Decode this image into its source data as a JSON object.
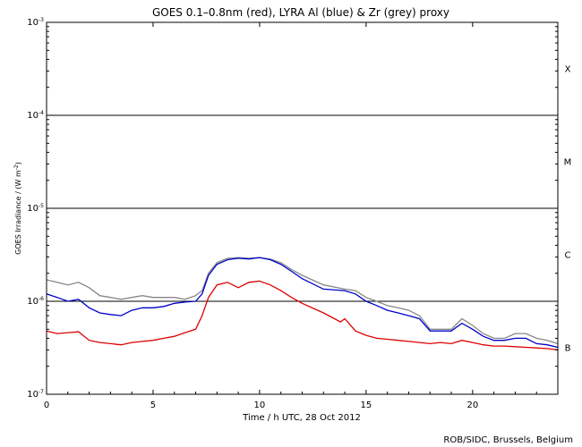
{
  "chart_data": {
    "type": "line",
    "title": "GOES 0.1–0.8nm (red), LYRA Al (blue) & Zr (grey) proxy",
    "xlabel": "Time / h UTC, 28 Oct 2012",
    "ylabel": "GOES Irradiance / (W m",
    "ylabel_sup": "-2",
    "ylabel_close": ")",
    "xlim": [
      0,
      24
    ],
    "ylim": [
      1e-07,
      0.001
    ],
    "yscale": "log",
    "x_ticks": [
      {
        "value": 0,
        "label": "0"
      },
      {
        "value": 5,
        "label": "5"
      },
      {
        "value": 10,
        "label": "10"
      },
      {
        "value": 15,
        "label": "15"
      },
      {
        "value": 20,
        "label": "20"
      }
    ],
    "y_ticks": [
      {
        "value": 1e-07,
        "base": "10",
        "exp": "-7"
      },
      {
        "value": 1e-06,
        "base": "10",
        "exp": "-6"
      },
      {
        "value": 1e-05,
        "base": "10",
        "exp": "-5"
      },
      {
        "value": 0.0001,
        "base": "10",
        "exp": "-4"
      },
      {
        "value": 0.001,
        "base": "10",
        "exp": "-3"
      }
    ],
    "class_lines": [
      1e-06,
      1e-05,
      0.0001
    ],
    "flare_classes": [
      {
        "label": "X",
        "value": 0.00032
      },
      {
        "label": "M",
        "value": 3.2e-05
      },
      {
        "label": "C",
        "value": 3.2e-06
      },
      {
        "label": "B",
        "value": 3.2e-07
      }
    ],
    "series": [
      {
        "color": "#888888",
        "x": [
          0.0,
          0.5,
          1.0,
          1.5,
          2.0,
          2.5,
          3.0,
          3.5,
          4.0,
          4.5,
          5.0,
          5.5,
          6.0,
          6.5,
          7.0,
          7.3,
          7.6,
          8.0,
          8.5,
          9.0,
          9.5,
          10.0,
          10.5,
          11.0,
          11.5,
          12.0,
          13.0,
          14.0,
          14.5,
          15.0,
          15.5,
          16.0,
          16.5,
          17.0,
          17.5,
          18.0,
          18.5,
          19.0,
          19.5,
          20.0,
          20.5,
          21.0,
          21.5,
          22.0,
          22.5,
          23.0,
          23.5,
          24.0
        ],
        "y": [
          1.7e-06,
          1.6e-06,
          1.5e-06,
          1.6e-06,
          1.4e-06,
          1.15e-06,
          1.1e-06,
          1.05e-06,
          1.1e-06,
          1.15e-06,
          1.1e-06,
          1.1e-06,
          1.1e-06,
          1.05e-06,
          1.15e-06,
          1.3e-06,
          2e-06,
          2.6e-06,
          2.9e-06,
          2.95e-06,
          2.9e-06,
          2.95e-06,
          2.85e-06,
          2.6e-06,
          2.2e-06,
          1.9e-06,
          1.5e-06,
          1.35e-06,
          1.3e-06,
          1.1e-06,
          1e-06,
          9e-07,
          8.5e-07,
          8e-07,
          7e-07,
          5e-07,
          5e-07,
          5e-07,
          6.5e-07,
          5.5e-07,
          4.5e-07,
          4e-07,
          4e-07,
          4.5e-07,
          4.5e-07,
          4e-07,
          3.8e-07,
          3.5e-07
        ]
      },
      {
        "color": "#0000cc",
        "x": [
          0.0,
          0.5,
          1.0,
          1.5,
          2.0,
          2.5,
          3.0,
          3.5,
          4.0,
          4.5,
          5.0,
          5.5,
          6.0,
          6.5,
          7.0,
          7.3,
          7.6,
          8.0,
          8.5,
          9.0,
          9.5,
          10.0,
          10.5,
          11.0,
          11.5,
          12.0,
          13.0,
          14.0,
          14.5,
          15.0,
          15.5,
          16.0,
          16.5,
          17.0,
          17.5,
          18.0,
          18.5,
          19.0,
          19.5,
          20.0,
          20.5,
          21.0,
          21.5,
          22.0,
          22.5,
          23.0,
          23.5,
          24.0
        ],
        "y": [
          1.2e-06,
          1.1e-06,
          1e-06,
          1.05e-06,
          8.5e-07,
          7.5e-07,
          7.2e-07,
          7e-07,
          8e-07,
          8.5e-07,
          8.5e-07,
          8.8e-07,
          9.5e-07,
          9.8e-07,
          1e-06,
          1.2e-06,
          1.9e-06,
          2.5e-06,
          2.8e-06,
          2.9e-06,
          2.85e-06,
          2.95e-06,
          2.8e-06,
          2.5e-06,
          2.1e-06,
          1.75e-06,
          1.35e-06,
          1.3e-06,
          1.2e-06,
          1e-06,
          9e-07,
          8e-07,
          7.5e-07,
          7e-07,
          6.5e-07,
          4.8e-07,
          4.8e-07,
          4.8e-07,
          5.8e-07,
          5e-07,
          4.2e-07,
          3.8e-07,
          3.8e-07,
          4e-07,
          4e-07,
          3.5e-07,
          3.4e-07,
          3.2e-07
        ]
      },
      {
        "color": "#dd0000",
        "x": [
          0.0,
          0.5,
          1.0,
          1.5,
          2.0,
          2.5,
          3.0,
          3.5,
          4.0,
          4.5,
          5.0,
          5.5,
          6.0,
          6.5,
          7.0,
          7.3,
          7.6,
          8.0,
          8.5,
          9.0,
          9.5,
          10.0,
          10.5,
          11.0,
          11.5,
          12.0,
          13.0,
          13.8,
          14.0,
          14.5,
          15.0,
          15.5,
          16.0,
          16.5,
          17.0,
          17.5,
          18.0,
          18.5,
          19.0,
          19.5,
          20.0,
          20.5,
          21.0,
          21.5,
          22.0,
          22.5,
          23.0,
          23.5,
          24.0
        ],
        "y": [
          4.8e-07,
          4.5e-07,
          4.6e-07,
          4.7e-07,
          3.8e-07,
          3.6e-07,
          3.5e-07,
          3.4e-07,
          3.6e-07,
          3.7e-07,
          3.8e-07,
          4e-07,
          4.2e-07,
          4.6e-07,
          5e-07,
          7e-07,
          1.1e-06,
          1.5e-06,
          1.6e-06,
          1.4e-06,
          1.6e-06,
          1.65e-06,
          1.5e-06,
          1.3e-06,
          1.1e-06,
          9.5e-07,
          7.5e-07,
          6e-07,
          6.5e-07,
          4.8e-07,
          4.3e-07,
          4e-07,
          3.9e-07,
          3.8e-07,
          3.7e-07,
          3.6e-07,
          3.5e-07,
          3.6e-07,
          3.5e-07,
          3.8e-07,
          3.6e-07,
          3.4e-07,
          3.3e-07,
          3.3e-07,
          3.25e-07,
          3.2e-07,
          3.15e-07,
          3.1e-07,
          3e-07
        ]
      }
    ]
  },
  "credit": "ROB/SIDC, Brussels, Belgium"
}
